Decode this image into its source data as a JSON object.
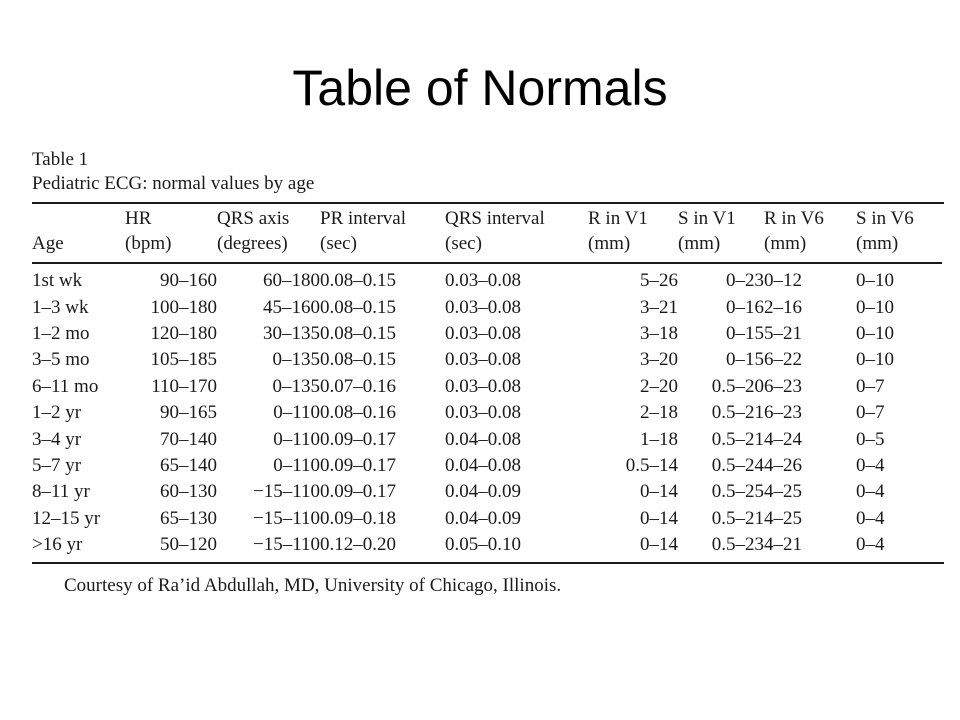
{
  "slide": {
    "title": "Table of Normals"
  },
  "table": {
    "label": "Table 1",
    "caption": "Pediatric ECG: normal values by age",
    "columns": [
      {
        "line1": "",
        "line2": "Age"
      },
      {
        "line1": "HR",
        "line2": "(bpm)"
      },
      {
        "line1": "QRS axis",
        "line2": "(degrees)"
      },
      {
        "line1": "PR interval",
        "line2": "(sec)"
      },
      {
        "line1": "QRS interval",
        "line2": "(sec)"
      },
      {
        "line1": "R in V1",
        "line2": "(mm)"
      },
      {
        "line1": "S in V1",
        "line2": "(mm)"
      },
      {
        "line1": "R in V6",
        "line2": "(mm)"
      },
      {
        "line1": "S in V6",
        "line2": "(mm)"
      }
    ],
    "rows": [
      [
        "1st wk",
        "90–160",
        "60–180",
        "0.08–0.15",
        "0.03–0.08",
        "5–26",
        "0–23",
        "0–12",
        "0–10"
      ],
      [
        "1–3 wk",
        "100–180",
        "45–160",
        "0.08–0.15",
        "0.03–0.08",
        "3–21",
        "0–16",
        "2–16",
        "0–10"
      ],
      [
        "1–2 mo",
        "120–180",
        "30–135",
        "0.08–0.15",
        "0.03–0.08",
        "3–18",
        "0–15",
        "5–21",
        "0–10"
      ],
      [
        "3–5 mo",
        "105–185",
        "0–135",
        "0.08–0.15",
        "0.03–0.08",
        "3–20",
        "0–15",
        "6–22",
        "0–10"
      ],
      [
        "6–11 mo",
        "110–170",
        "0–135",
        "0.07–0.16",
        "0.03–0.08",
        "2–20",
        "0.5–20",
        "6–23",
        "0–7"
      ],
      [
        "1–2 yr",
        "90–165",
        "0–110",
        "0.08–0.16",
        "0.03–0.08",
        "2–18",
        "0.5–21",
        "6–23",
        "0–7"
      ],
      [
        "3–4 yr",
        "70–140",
        "0–110",
        "0.09–0.17",
        "0.04–0.08",
        "1–18",
        "0.5–21",
        "4–24",
        "0–5"
      ],
      [
        "5–7 yr",
        "65–140",
        "0–110",
        "0.09–0.17",
        "0.04–0.08",
        "0.5–14",
        "0.5–24",
        "4–26",
        "0–4"
      ],
      [
        "8–11 yr",
        "60–130",
        "−15–110",
        "0.09–0.17",
        "0.04–0.09",
        "0–14",
        "0.5–25",
        "4–25",
        "0–4"
      ],
      [
        "12–15 yr",
        "65–130",
        "−15–110",
        "0.09–0.18",
        "0.04–0.09",
        "0–14",
        "0.5–21",
        "4–25",
        "0–4"
      ],
      [
        ">16 yr",
        "50–120",
        "−15–110",
        "0.12–0.20",
        "0.05–0.10",
        "0–14",
        "0.5–23",
        "4–21",
        "0–4"
      ]
    ],
    "footnote": "Courtesy of Ra’id Abdullah, MD, University of Chicago, Illinois."
  }
}
